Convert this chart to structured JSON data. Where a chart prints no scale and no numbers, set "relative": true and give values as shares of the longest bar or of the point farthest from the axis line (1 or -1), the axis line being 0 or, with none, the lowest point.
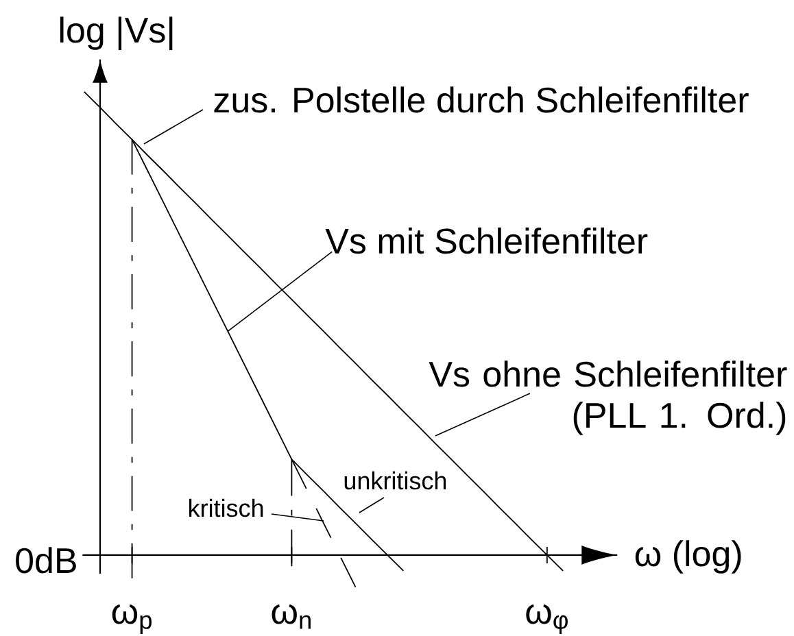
{
  "chart_data": {
    "type": "line",
    "relative": true,
    "xlabel": "ω (log)",
    "ylabel": "log |Vs|",
    "categories": [
      null,
      null,
      null,
      "ω$_{p}$",
      null,
      null,
      null,
      null,
      null,
      null,
      null,
      null,
      null,
      "ω$_{n}$",
      null,
      null,
      null,
      null,
      null,
      null,
      null,
      null,
      null,
      null,
      null,
      null,
      null,
      null,
      null,
      "ω$_{φ}$",
      null,
      null,
      null,
      null
    ],
    "series": [
      {
        "name": "Vs ohne Schleifenfilter (PLL 1. Ord.)",
        "color": "#000000",
        "values": [
          1.0,
          0.966,
          0.931,
          0.897,
          0.862,
          0.828,
          0.793,
          0.759,
          0.724,
          0.69,
          0.655,
          0.621,
          0.586,
          0.552,
          0.517,
          0.483,
          0.448,
          0.414,
          0.379,
          0.345,
          0.31,
          0.276,
          0.241,
          0.207,
          0.172,
          0.138,
          0.103,
          0.069,
          0.034,
          0.0,
          -0.034,
          null,
          null,
          null
        ]
      },
      {
        "color": "#000000",
        "values": [
          null,
          null,
          null,
          0.897,
          0.828,
          0.759,
          0.69,
          0.621,
          0.552,
          0.483,
          0.414,
          0.345,
          0.276,
          0.207,
          0.172,
          0.138,
          0.103,
          0.069,
          0.034,
          0.0,
          -0.034,
          null,
          null,
          null,
          null,
          null,
          null,
          null,
          null,
          null,
          null,
          null,
          null,
          null
        ]
      },
      {
        "color": "#000000",
        "line_style": "dashed",
        "values": [
          null,
          null,
          null,
          null,
          null,
          null,
          null,
          null,
          null,
          null,
          null,
          null,
          null,
          0.207,
          0.138,
          0.069,
          0.0,
          -0.069,
          null,
          null,
          null,
          null,
          null,
          null,
          null,
          null,
          null,
          null,
          null,
          null,
          null,
          null,
          null,
          null
        ]
      },
      {
        "color": "#000000",
        "line_style": "dashdot",
        "x": [
          "ω$_{p}$",
          "ω$_{p}$"
        ],
        "values": [
          0.897,
          -0.05
        ]
      },
      {
        "color": "#000000",
        "line_style": "dashdot",
        "x": [
          "ω$_{n}$",
          "ω$_{n}$"
        ],
        "values": [
          0.207,
          -0.024
        ]
      }
    ],
    "annotations": [
      {
        "text": "zus. Polstelle durch Schleifenfilter",
        "x": "ω$_{p}$",
        "y": 0.897
      },
      "Vs mit Schleifenfilter",
      "unkritisch",
      "kritisch",
      "0dB"
    ]
  }
}
